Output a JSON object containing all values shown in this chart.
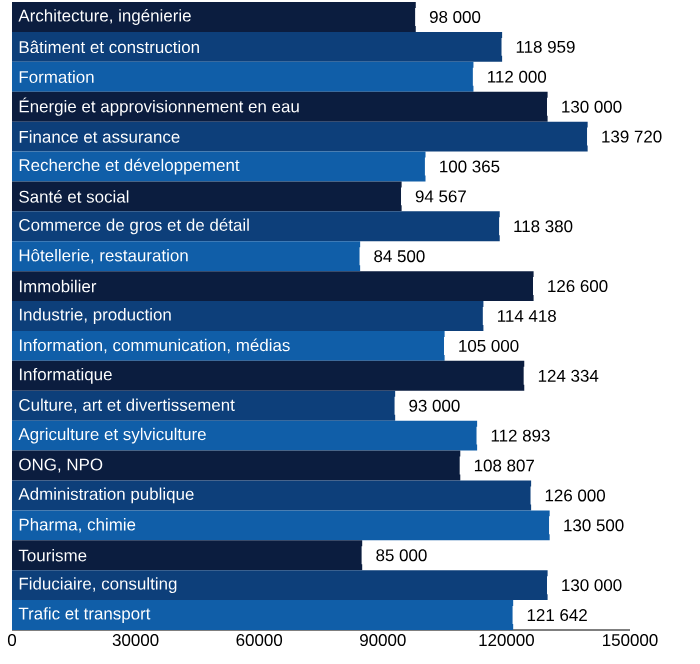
{
  "chart_data": {
    "type": "bar",
    "orientation": "horizontal",
    "categories": [
      "Architecture, ingénierie",
      "Bâtiment et construction",
      "Formation",
      "Énergie et approvisionnement en eau",
      "Finance et assurance",
      "Recherche et développement",
      "Santé et social",
      "Commerce de gros et de détail",
      "Hôtellerie, restauration",
      "Immobilier",
      "Industrie, production",
      "Information, communication, médias",
      "Informatique",
      "Culture, art et divertissement",
      "Agriculture et sylviculture",
      "ONG, NPO",
      "Administration publique",
      "Pharma, chimie",
      "Tourisme",
      "Fiduciaire, consulting",
      "Trafic et transport"
    ],
    "values": [
      98000,
      118959,
      112000,
      130000,
      139720,
      100365,
      94567,
      118380,
      84500,
      126600,
      114418,
      105000,
      124334,
      93000,
      112893,
      108807,
      126000,
      130500,
      85000,
      130000,
      121642
    ],
    "value_labels": [
      "98 000",
      "118 959",
      "112 000",
      "130 000",
      "139 720",
      "100 365",
      "94 567",
      "118 380",
      "84 500",
      "126 600",
      "114 418",
      "105 000",
      "124 334",
      "93 000",
      "112 893",
      "108 807",
      "126 000",
      "130 500",
      "85 000",
      "130 000",
      "121 642"
    ],
    "colors": [
      "#0b1d3f",
      "#0d3f7a",
      "#105ea8",
      "#0b1d3f",
      "#0d3f7a",
      "#105ea8",
      "#0b1d3f",
      "#0d3f7a",
      "#105ea8",
      "#0b1d3f",
      "#0d3f7a",
      "#105ea8",
      "#0b1d3f",
      "#0d3f7a",
      "#105ea8",
      "#0b1d3f",
      "#0d3f7a",
      "#105ea8",
      "#0b1d3f",
      "#0d3f7a",
      "#105ea8"
    ],
    "xlim": [
      0,
      150000
    ],
    "xticks": [
      0,
      30000,
      60000,
      90000,
      120000,
      150000
    ]
  }
}
